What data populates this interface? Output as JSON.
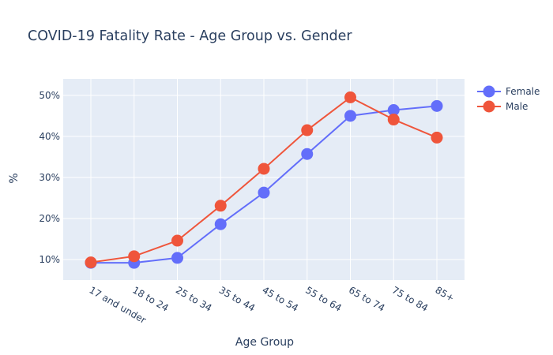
{
  "chart_data": {
    "type": "line",
    "title": "COVID-19 Fatality Rate - Age Group vs. Gender",
    "xlabel": "Age Group",
    "ylabel": "%",
    "categories": [
      "17 and under",
      "18 to 24",
      "25 to 34",
      "35 to 44",
      "45 to 54",
      "55 to 64",
      "65 to 74",
      "75 to 84",
      "85+"
    ],
    "ylim": [
      5,
      54
    ],
    "yticks": [
      10,
      20,
      30,
      40,
      50
    ],
    "ytick_labels": [
      "10%",
      "20%",
      "30%",
      "40%",
      "50%"
    ],
    "grid": true,
    "legend_position": "top-right",
    "series": [
      {
        "name": "Female",
        "color": "#636efa",
        "values": [
          9.2,
          9.2,
          10.4,
          18.6,
          26.3,
          35.7,
          45.0,
          46.4,
          47.4
        ]
      },
      {
        "name": "Male",
        "color": "#ef553b",
        "values": [
          9.3,
          10.8,
          14.6,
          23.1,
          32.1,
          41.5,
          49.5,
          44.1,
          39.7
        ]
      }
    ]
  }
}
